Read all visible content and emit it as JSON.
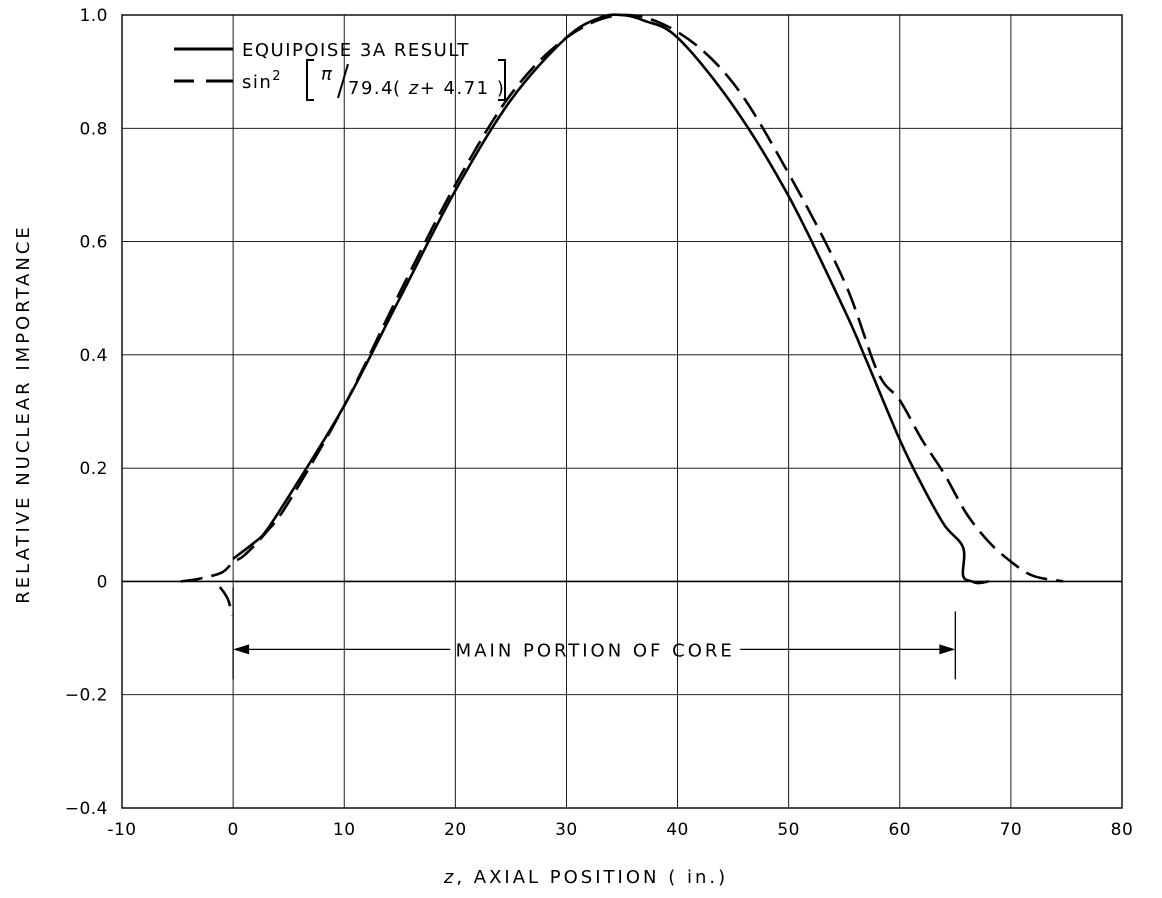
{
  "chart_data": {
    "type": "line",
    "title": "",
    "xlabel_var": "z",
    "xlabel": ", AXIAL  POSITION  ( in.)",
    "ylabel": "RELATIVE  NUCLEAR  IMPORTANCE",
    "xlim": [
      -10,
      80
    ],
    "ylim": [
      -0.4,
      1.0
    ],
    "xticks": [
      -10,
      0,
      10,
      20,
      30,
      40,
      50,
      60,
      70,
      80
    ],
    "xtick_labels": [
      "-10",
      "0",
      "10",
      "20",
      "30",
      "40",
      "50",
      "60",
      "70",
      "80"
    ],
    "yticks": [
      -0.4,
      -0.2,
      0,
      0.2,
      0.4,
      0.6,
      0.8,
      1.0
    ],
    "ytick_labels": [
      "−0.4",
      "−0.2",
      "0",
      "0.2",
      "0.4",
      "0.6",
      "0.8",
      "1.0"
    ],
    "grid": true,
    "legend_position": "top-left",
    "series": [
      {
        "name": "EQUIPOISE 3A RESULT",
        "style": "solid",
        "x": [
          0,
          2,
          3,
          5,
          10,
          15,
          20,
          25,
          30,
          33,
          35,
          37,
          40,
          45,
          50,
          55,
          57,
          60,
          62,
          64,
          65.7,
          65.7,
          66.5,
          67,
          68
        ],
        "y": [
          0.04,
          0.07,
          0.09,
          0.15,
          0.31,
          0.5,
          0.69,
          0.85,
          0.96,
          0.995,
          1.0,
          0.99,
          0.96,
          0.84,
          0.68,
          0.48,
          0.39,
          0.25,
          0.17,
          0.1,
          0.06,
          0.01,
          0.0,
          -0.003,
          0.0
        ]
      },
      {
        "name": "sin²[π/79.4 (z + 4.71)]",
        "style": "dashed",
        "x": [
          -4.71,
          -3,
          -1,
          0,
          1,
          3,
          5,
          10,
          15,
          20,
          25,
          30,
          35,
          40,
          45,
          50,
          55,
          58,
          60,
          62,
          64,
          66,
          68,
          70,
          72,
          74.7
        ],
        "y": [
          0.0,
          0.005,
          0.016,
          0.034,
          0.046,
          0.087,
          0.14,
          0.31,
          0.51,
          0.7,
          0.86,
          0.96,
          1.0,
          0.97,
          0.88,
          0.72,
          0.53,
          0.37,
          0.32,
          0.25,
          0.19,
          0.12,
          0.07,
          0.035,
          0.01,
          0.0
        ]
      },
      {
        "name": "",
        "style": "dashed",
        "x": [
          -1.2,
          -0.8,
          -0.4,
          -0.1
        ],
        "y": [
          -0.01,
          -0.02,
          -0.035,
          -0.06
        ]
      }
    ],
    "legend": {
      "solid_label": "EQUIPOISE 3A RESULT",
      "dashed_prefix": "sin",
      "dashed_sup": "2",
      "dashed_num": "π",
      "dashed_den": "79.4",
      "dashed_paren_open": "(",
      "dashed_var": "z",
      "dashed_rest": "+ 4.71 )"
    },
    "annotations": [
      {
        "text": "MAIN  PORTION  OF  CORE",
        "x_from": 0,
        "x_to": 65,
        "y": -0.12
      }
    ]
  }
}
